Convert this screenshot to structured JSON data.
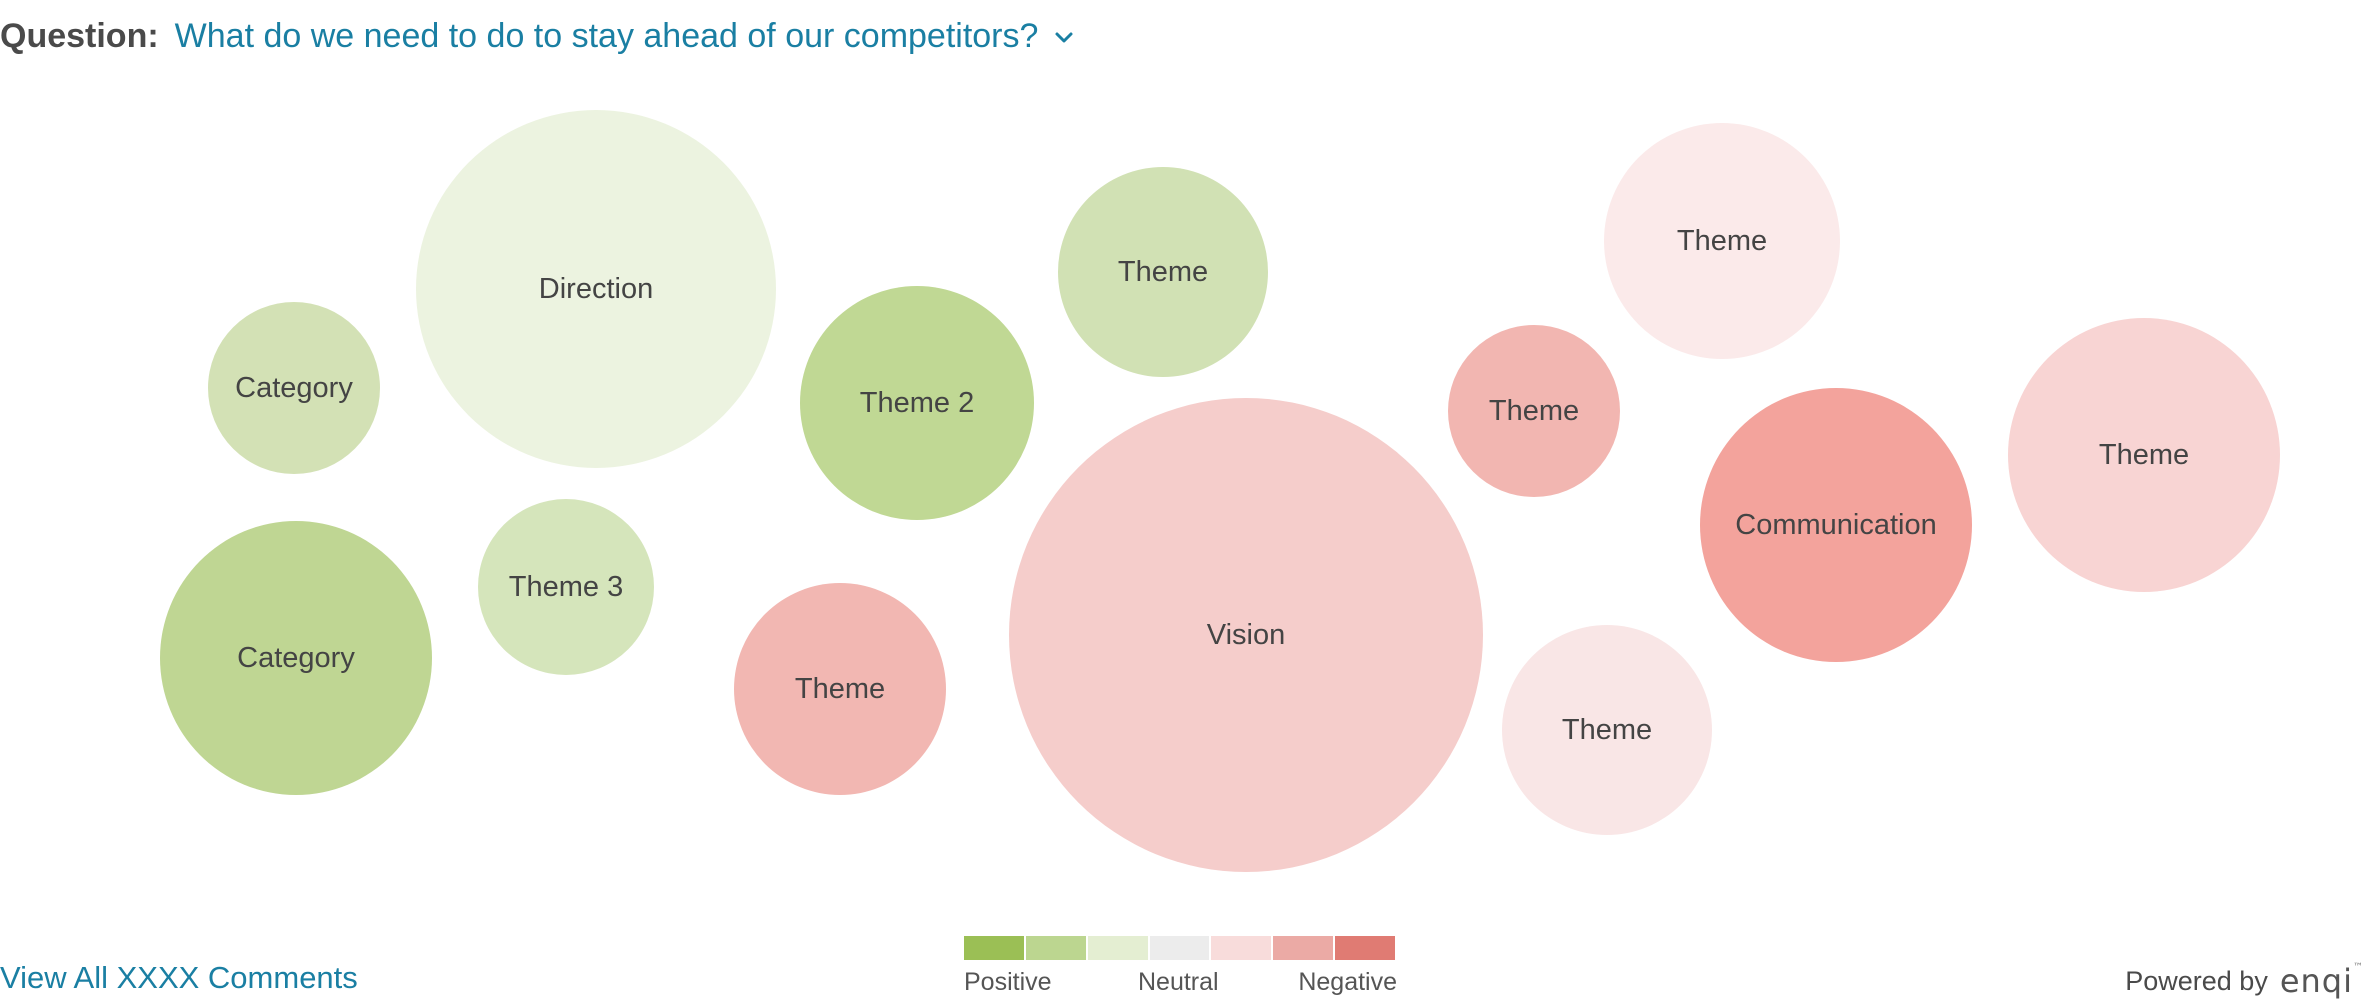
{
  "header": {
    "question_label": "Question:",
    "question_text": "What do we need to do to stay ahead of our competitors?",
    "chevron_icon": "chevron-down-icon"
  },
  "bubbles": [
    {
      "label": "Category",
      "sentiment": "positive-light",
      "color": "#d3e1b5"
    },
    {
      "label": "Direction",
      "sentiment": "positive-faint",
      "color": "#ecf3e0"
    },
    {
      "label": "Theme 2",
      "sentiment": "positive",
      "color": "#c0d894"
    },
    {
      "label": "Theme",
      "sentiment": "positive-light",
      "color": "#d1e1b4"
    },
    {
      "label": "Theme 3",
      "sentiment": "positive-light",
      "color": "#d5e5bb"
    },
    {
      "label": "Category",
      "sentiment": "positive",
      "color": "#bfd693"
    },
    {
      "label": "Theme",
      "sentiment": "negative-medium",
      "color": "#f2b7b2"
    },
    {
      "label": "Vision",
      "sentiment": "negative-light",
      "color": "#f5cdcb"
    },
    {
      "label": "Theme",
      "sentiment": "negative-faint",
      "color": "#fbeaea"
    },
    {
      "label": "Theme",
      "sentiment": "negative-medium",
      "color": "#f2b6b1"
    },
    {
      "label": "Communication",
      "sentiment": "negative-strong",
      "color": "#f3a39c"
    },
    {
      "label": "Theme",
      "sentiment": "negative-light",
      "color": "#f8d4d3"
    },
    {
      "label": "Theme",
      "sentiment": "negative-faint",
      "color": "#f9e6e6"
    }
  ],
  "footer": {
    "view_all_label": "View All XXXX Comments",
    "legend": {
      "positive_label": "Positive",
      "neutral_label": "Neutral",
      "negative_label": "Negative",
      "swatches": [
        "#9bbf55",
        "#bcd690",
        "#e4eed2",
        "#ececec",
        "#f8dcdb",
        "#ebaaa5",
        "#e07b73"
      ]
    },
    "powered_by_label": "Powered by",
    "brand_name": "enqi",
    "brand_tm": "™"
  }
}
